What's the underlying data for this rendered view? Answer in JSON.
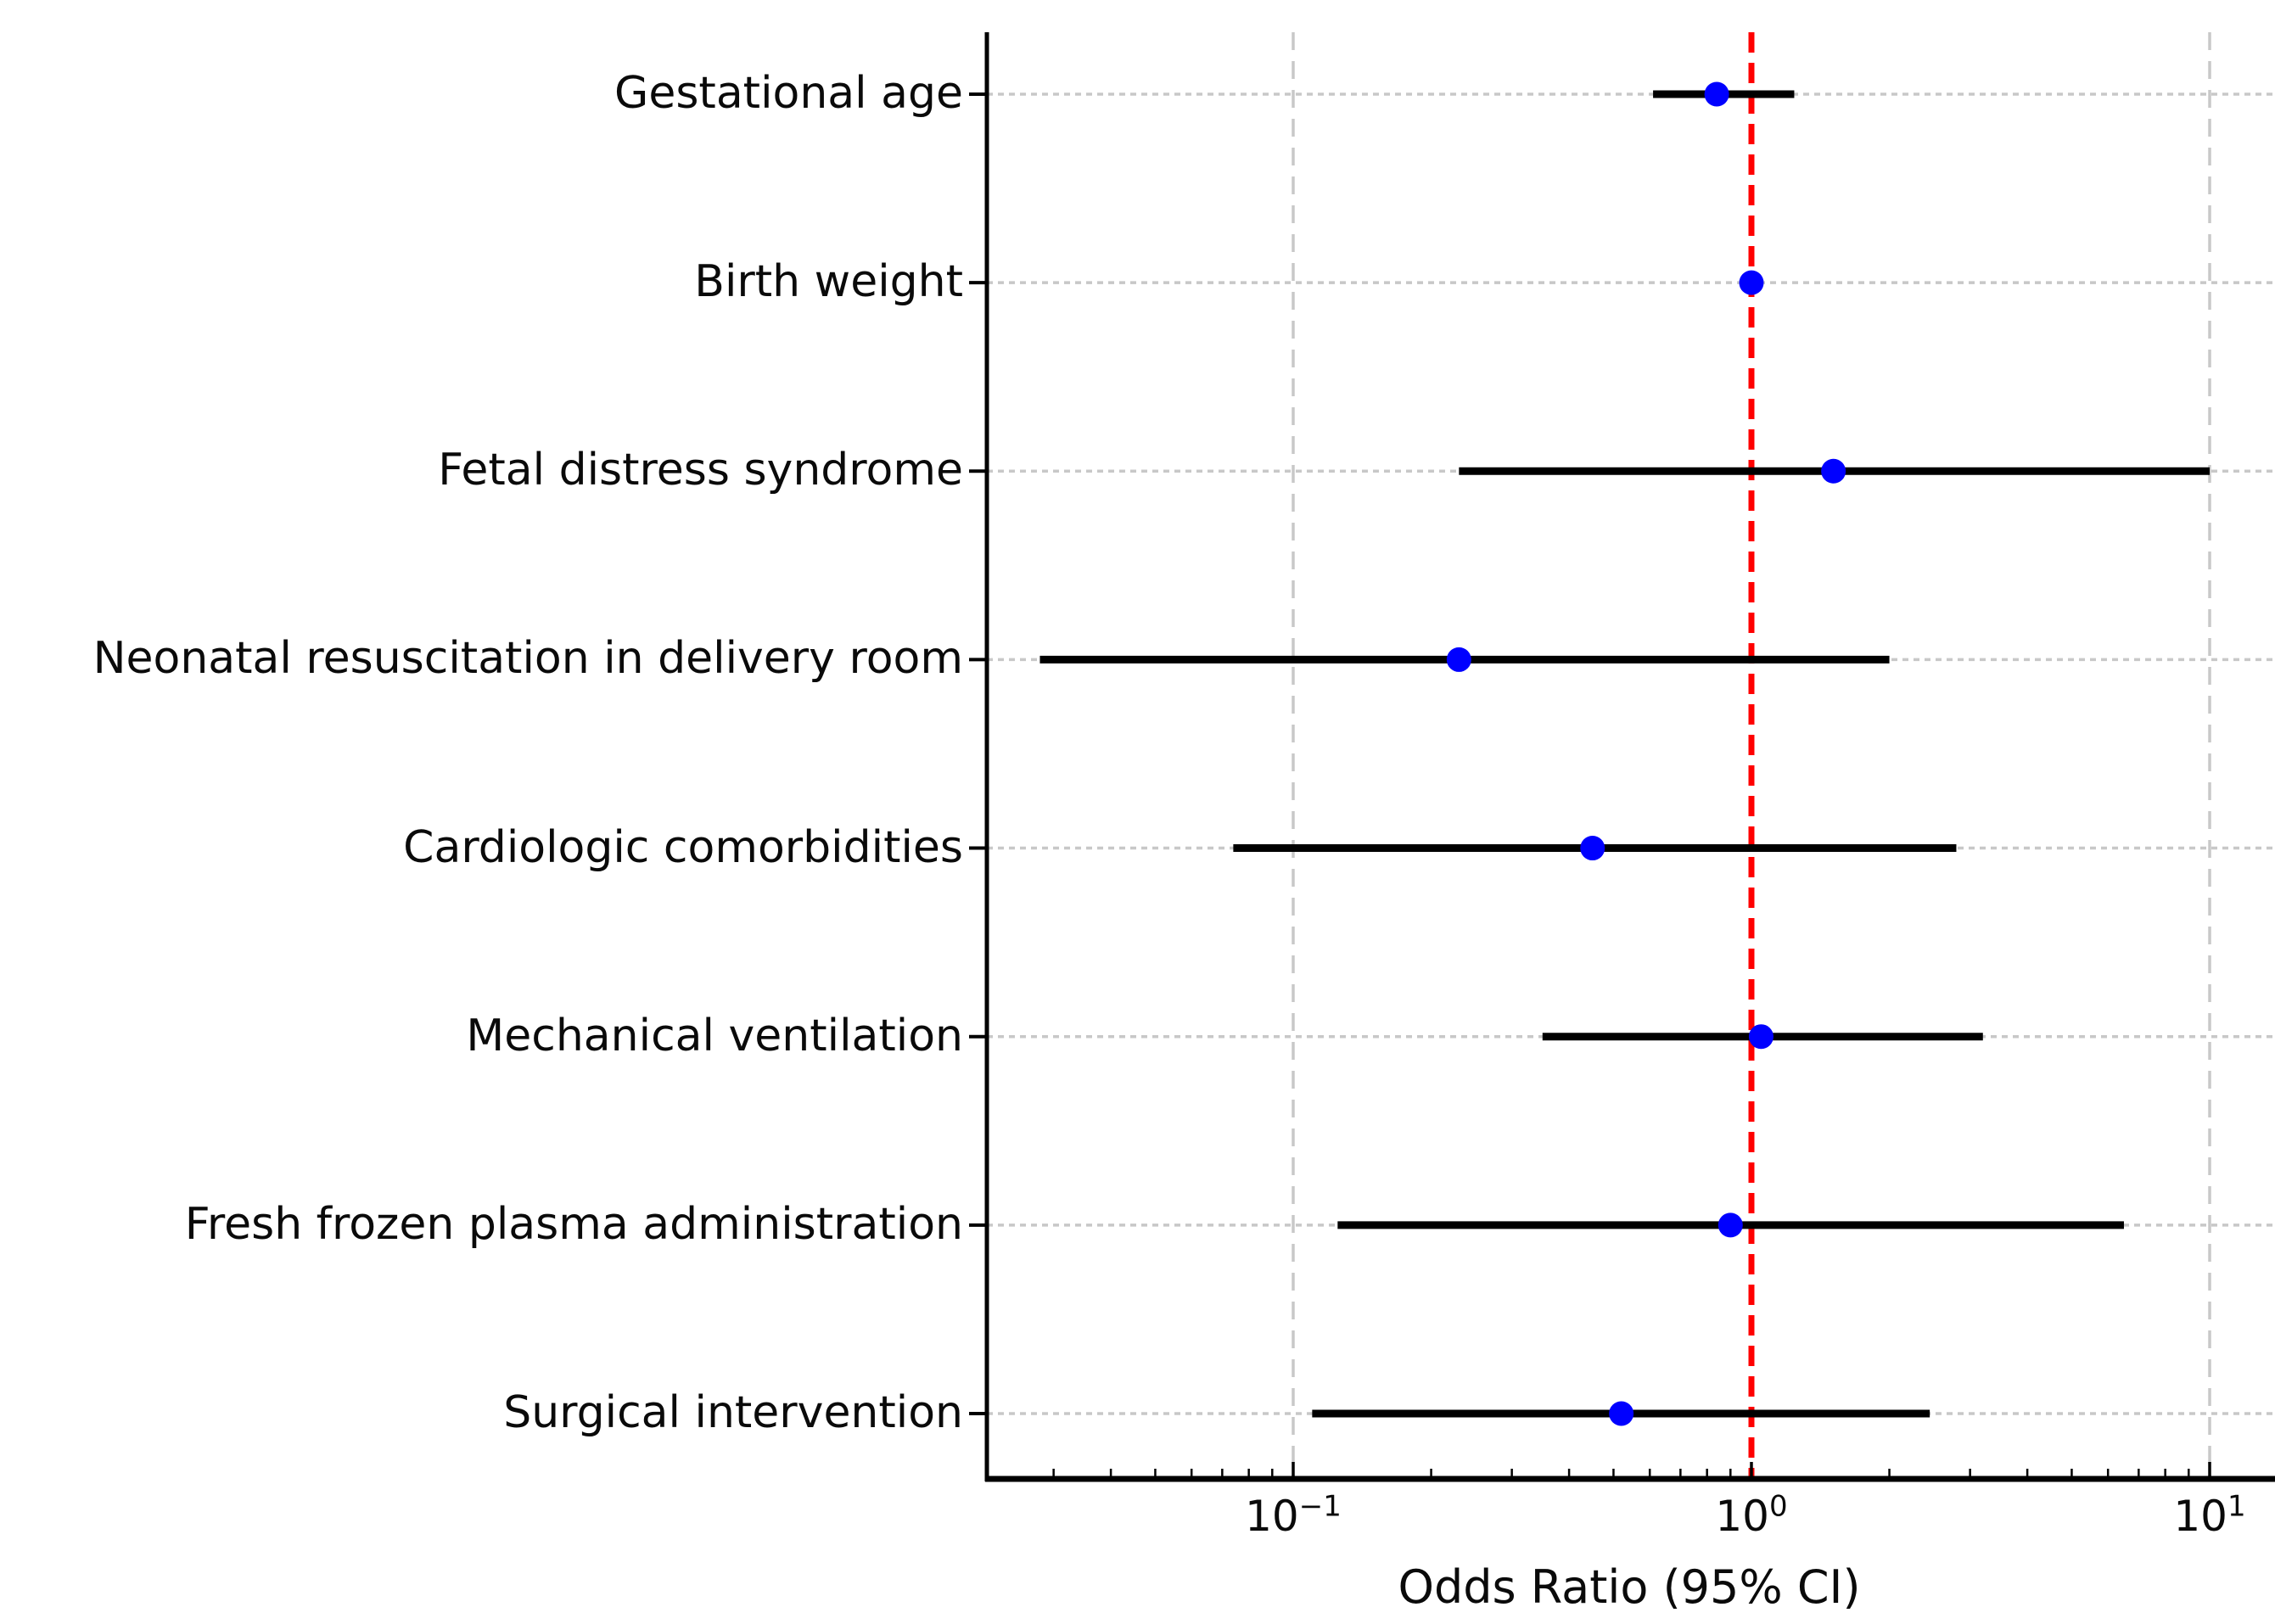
{
  "chart_data": {
    "type": "scatter",
    "variant": "forest-plot",
    "title": "",
    "xlabel": "Odds Ratio (95% CI)",
    "ylabel": "",
    "x_scale": "log10",
    "xlim": [
      0.0215,
      13.7
    ],
    "grid": true,
    "legend": "none",
    "x_major_ticks": [
      {
        "value": 0.1,
        "base": "10",
        "exponent": "−1"
      },
      {
        "value": 1.0,
        "base": "10",
        "exponent": "0"
      },
      {
        "value": 10.0,
        "base": "10",
        "exponent": "1"
      }
    ],
    "reference_line": {
      "value": 1.0,
      "linestyle": "dashed",
      "color": "#ff0000"
    },
    "rows": [
      {
        "label": "Gestational age",
        "or": 0.84,
        "ci_low": 0.61,
        "ci_high": 1.24
      },
      {
        "label": "Birth weight",
        "or": 1.0,
        "ci_low": 1.0,
        "ci_high": 1.0
      },
      {
        "label": "Fetal distress syndrome",
        "or": 1.51,
        "ci_low": 0.23,
        "ci_high": 10.0
      },
      {
        "label": "Neonatal resuscitation in delivery room",
        "or": 0.23,
        "ci_low": 0.028,
        "ci_high": 2.0
      },
      {
        "label": "Cardiologic comorbidities",
        "or": 0.45,
        "ci_low": 0.074,
        "ci_high": 2.8
      },
      {
        "label": "Mechanical ventilation",
        "or": 1.05,
        "ci_low": 0.35,
        "ci_high": 3.2
      },
      {
        "label": "Fresh frozen plasma administration",
        "or": 0.9,
        "ci_low": 0.125,
        "ci_high": 6.5
      },
      {
        "label": "Surgical intervention",
        "or": 0.52,
        "ci_low": 0.11,
        "ci_high": 2.45
      }
    ]
  },
  "style": {
    "point_color": "#0000ff",
    "ci_color": "#000000",
    "reference_color": "#ff0000",
    "grid_color": "#c8c8c8",
    "axis_color": "#000000",
    "background": "#ffffff"
  }
}
